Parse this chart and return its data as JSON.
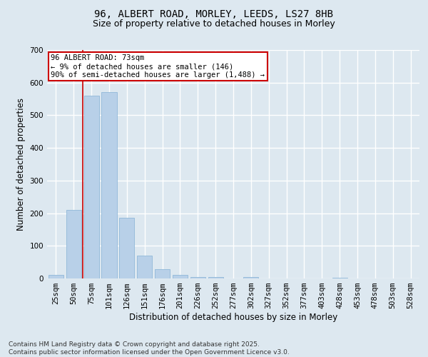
{
  "title_line1": "96, ALBERT ROAD, MORLEY, LEEDS, LS27 8HB",
  "title_line2": "Size of property relative to detached houses in Morley",
  "xlabel": "Distribution of detached houses by size in Morley",
  "ylabel": "Number of detached properties",
  "categories": [
    "25sqm",
    "50sqm",
    "75sqm",
    "101sqm",
    "126sqm",
    "151sqm",
    "176sqm",
    "201sqm",
    "226sqm",
    "252sqm",
    "277sqm",
    "302sqm",
    "327sqm",
    "352sqm",
    "377sqm",
    "403sqm",
    "428sqm",
    "453sqm",
    "478sqm",
    "503sqm",
    "528sqm"
  ],
  "values": [
    10,
    210,
    560,
    570,
    185,
    70,
    28,
    10,
    4,
    4,
    0,
    4,
    0,
    0,
    0,
    0,
    3,
    0,
    0,
    0,
    0
  ],
  "bar_color": "#b8d0e8",
  "bar_edge_color": "#90b8d8",
  "vline_x": 1.5,
  "vline_color": "#cc0000",
  "annotation_text": "96 ALBERT ROAD: 73sqm\n← 9% of detached houses are smaller (146)\n90% of semi-detached houses are larger (1,488) →",
  "annotation_box_color": "white",
  "annotation_box_edge_color": "#cc0000",
  "ylim": [
    0,
    700
  ],
  "yticks": [
    0,
    100,
    200,
    300,
    400,
    500,
    600,
    700
  ],
  "background_color": "#dde8f0",
  "plot_bg_color": "#dde8f0",
  "grid_color": "white",
  "footer_text": "Contains HM Land Registry data © Crown copyright and database right 2025.\nContains public sector information licensed under the Open Government Licence v3.0.",
  "title_fontsize": 10,
  "subtitle_fontsize": 9,
  "axis_label_fontsize": 8.5,
  "tick_fontsize": 7.5,
  "annotation_fontsize": 7.5,
  "footer_fontsize": 6.5
}
